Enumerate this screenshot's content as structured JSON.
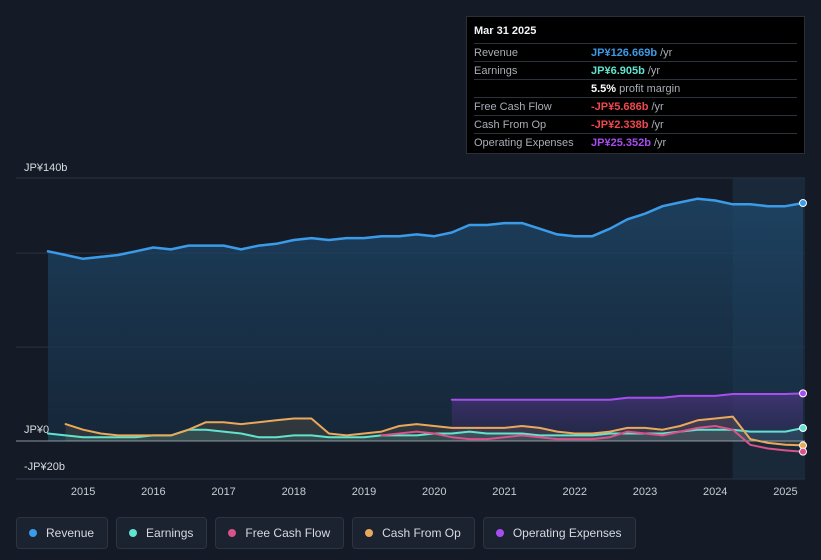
{
  "tooltip": {
    "date": "Mar 31 2025",
    "rows": [
      {
        "label": "Revenue",
        "value": "JP¥126.669b",
        "unit": "/yr",
        "color": "#3b9be8"
      },
      {
        "label": "Earnings",
        "value": "JP¥6.905b",
        "unit": "/yr",
        "color": "#62e3cf"
      },
      {
        "label": "",
        "value": "5.5%",
        "unit": "profit margin",
        "color": "#ffffff"
      },
      {
        "label": "Free Cash Flow",
        "value": "-JP¥5.686b",
        "unit": "/yr",
        "color": "#f0484f"
      },
      {
        "label": "Cash From Op",
        "value": "-JP¥2.338b",
        "unit": "/yr",
        "color": "#f0484f"
      },
      {
        "label": "Operating Expenses",
        "value": "JP¥25.352b",
        "unit": "/yr",
        "color": "#a84ef0"
      }
    ]
  },
  "legend": [
    {
      "label": "Revenue",
      "color": "#3b9be8"
    },
    {
      "label": "Earnings",
      "color": "#62e3cf"
    },
    {
      "label": "Free Cash Flow",
      "color": "#d9528a"
    },
    {
      "label": "Cash From Op",
      "color": "#e9a95c"
    },
    {
      "label": "Operating Expenses",
      "color": "#a84ef0"
    }
  ],
  "chart_data": {
    "type": "area",
    "title": "",
    "xlabel": "",
    "ylabel": "",
    "y_top_label": "JP¥140b",
    "y_zero_label": "JP¥0",
    "y_bottom_label": "-JP¥20b",
    "ylim": [
      -20,
      140
    ],
    "xlim": [
      2014.5,
      2025.25
    ],
    "x_ticks": [
      "2015",
      "2016",
      "2017",
      "2018",
      "2019",
      "2020",
      "2021",
      "2022",
      "2023",
      "2024",
      "2025"
    ],
    "x_tick_values": [
      2015,
      2016,
      2017,
      2018,
      2019,
      2020,
      2021,
      2022,
      2023,
      2024,
      2025
    ],
    "forecast_start": 2024.25,
    "series": [
      {
        "name": "Revenue",
        "color": "#3b9be8",
        "x": [
          2014.5,
          2014.75,
          2015.0,
          2015.25,
          2015.5,
          2015.75,
          2016.0,
          2016.25,
          2016.5,
          2016.75,
          2017.0,
          2017.25,
          2017.5,
          2017.75,
          2018.0,
          2018.25,
          2018.5,
          2018.75,
          2019.0,
          2019.25,
          2019.5,
          2019.75,
          2020.0,
          2020.25,
          2020.5,
          2020.75,
          2021.0,
          2021.25,
          2021.5,
          2021.75,
          2022.0,
          2022.25,
          2022.5,
          2022.75,
          2023.0,
          2023.25,
          2023.5,
          2023.75,
          2024.0,
          2024.25,
          2024.5,
          2024.75,
          2025.0,
          2025.25
        ],
        "values": [
          101,
          99,
          97,
          98,
          99,
          101,
          103,
          102,
          104,
          104,
          104,
          102,
          104,
          105,
          107,
          108,
          107,
          108,
          108,
          109,
          109,
          110,
          109,
          111,
          115,
          115,
          116,
          116,
          113,
          110,
          109,
          109,
          113,
          118,
          121,
          125,
          127,
          129,
          128,
          126,
          126,
          125,
          125,
          126.669
        ]
      },
      {
        "name": "Earnings",
        "color": "#62e3cf",
        "x": [
          2014.5,
          2014.75,
          2015.0,
          2015.25,
          2015.5,
          2015.75,
          2016.0,
          2016.25,
          2016.5,
          2016.75,
          2017.0,
          2017.25,
          2017.5,
          2017.75,
          2018.0,
          2018.25,
          2018.5,
          2018.75,
          2019.0,
          2019.25,
          2019.5,
          2019.75,
          2020.0,
          2020.25,
          2020.5,
          2020.75,
          2021.0,
          2021.25,
          2021.5,
          2021.75,
          2022.0,
          2022.25,
          2022.5,
          2022.75,
          2023.0,
          2023.25,
          2023.5,
          2023.75,
          2024.0,
          2024.25,
          2024.5,
          2024.75,
          2025.0,
          2025.25
        ],
        "values": [
          4,
          3,
          2,
          2,
          2,
          2,
          3,
          3,
          6,
          6,
          5,
          4,
          2,
          2,
          3,
          3,
          2,
          2,
          2,
          3,
          3,
          3,
          4,
          4,
          5,
          4,
          4,
          4,
          3,
          3,
          3,
          3,
          4,
          4,
          4,
          4,
          5,
          6,
          6,
          6,
          5,
          5,
          5,
          6.905
        ]
      },
      {
        "name": "Free Cash Flow",
        "color": "#d9528a",
        "x": [
          2019.25,
          2019.5,
          2019.75,
          2020.0,
          2020.25,
          2020.5,
          2020.75,
          2021.0,
          2021.25,
          2021.5,
          2021.75,
          2022.0,
          2022.25,
          2022.5,
          2022.75,
          2023.0,
          2023.25,
          2023.5,
          2023.75,
          2024.0,
          2024.25,
          2024.5,
          2024.75,
          2025.0,
          2025.25
        ],
        "values": [
          3,
          4,
          5,
          4,
          2,
          1,
          1,
          2,
          3,
          2,
          1,
          1,
          1,
          2,
          5,
          4,
          3,
          5,
          7,
          8,
          6,
          -2,
          -4,
          -5,
          -5.686
        ]
      },
      {
        "name": "Cash From Op",
        "color": "#e9a95c",
        "x": [
          2014.75,
          2015.0,
          2015.25,
          2015.5,
          2015.75,
          2016.0,
          2016.25,
          2016.5,
          2016.75,
          2017.0,
          2017.25,
          2017.5,
          2017.75,
          2018.0,
          2018.25,
          2018.5,
          2018.75,
          2019.0,
          2019.25,
          2019.5,
          2019.75,
          2020.0,
          2020.25,
          2020.5,
          2020.75,
          2021.0,
          2021.25,
          2021.5,
          2021.75,
          2022.0,
          2022.25,
          2022.5,
          2022.75,
          2023.0,
          2023.25,
          2023.5,
          2023.75,
          2024.0,
          2024.25,
          2024.5,
          2024.75,
          2025.0,
          2025.25
        ],
        "values": [
          9,
          6,
          4,
          3,
          3,
          3,
          3,
          6,
          10,
          10,
          9,
          10,
          11,
          12,
          12,
          4,
          3,
          4,
          5,
          8,
          9,
          8,
          7,
          7,
          7,
          7,
          8,
          7,
          5,
          4,
          4,
          5,
          7,
          7,
          6,
          8,
          11,
          12,
          13,
          1,
          -1,
          -2,
          -2.338
        ]
      },
      {
        "name": "Operating Expenses",
        "color": "#a84ef0",
        "x": [
          2020.25,
          2020.5,
          2020.75,
          2021.0,
          2021.25,
          2021.5,
          2021.75,
          2022.0,
          2022.25,
          2022.5,
          2022.75,
          2023.0,
          2023.25,
          2023.5,
          2023.75,
          2024.0,
          2024.25,
          2024.5,
          2024.75,
          2025.0,
          2025.25
        ],
        "values": [
          22,
          22,
          22,
          22,
          22,
          22,
          22,
          22,
          22,
          22,
          23,
          23,
          23,
          24,
          24,
          24,
          25,
          25,
          25,
          25,
          25.352
        ]
      }
    ]
  }
}
